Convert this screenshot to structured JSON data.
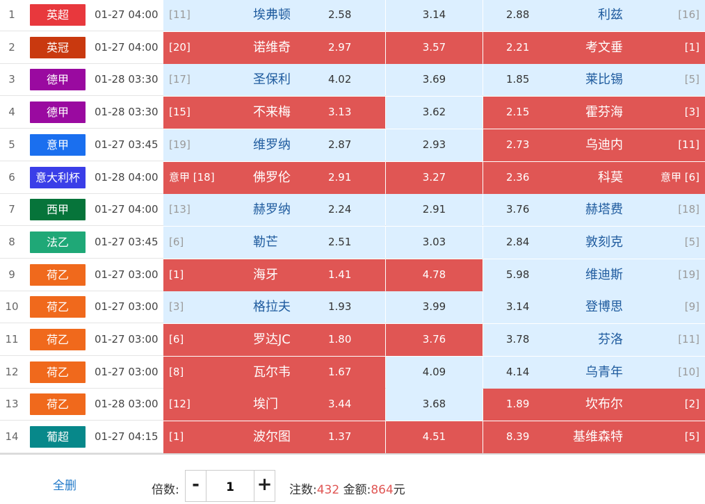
{
  "colors": {
    "selected_bg": "#e05654",
    "unselected_bg": "#dcefff",
    "team_text": "#1f5b9e"
  },
  "matches": [
    {
      "num": "1",
      "league": "英超",
      "league_color": "#e8383d",
      "time": "01-27 04:00",
      "home_rank": "[11]",
      "home": "埃弗顿",
      "home_odds": "2.58",
      "draw_odds": "3.14",
      "away_odds": "2.88",
      "away": "利兹",
      "away_rank": "[16]",
      "sel_home": false,
      "sel_draw": false,
      "sel_away": false
    },
    {
      "num": "2",
      "league": "英冠",
      "league_color": "#c9390f",
      "time": "01-27 04:00",
      "home_rank": "[20]",
      "home": "诺维奇",
      "home_odds": "2.97",
      "draw_odds": "3.57",
      "away_odds": "2.21",
      "away": "考文垂",
      "away_rank": "[1]",
      "sel_home": true,
      "sel_draw": true,
      "sel_away": true
    },
    {
      "num": "3",
      "league": "德甲",
      "league_color": "#9a0aa0",
      "time": "01-28 03:30",
      "home_rank": "[17]",
      "home": "圣保利",
      "home_odds": "4.02",
      "draw_odds": "3.69",
      "away_odds": "1.85",
      "away": "莱比锡",
      "away_rank": "[5]",
      "sel_home": false,
      "sel_draw": false,
      "sel_away": false
    },
    {
      "num": "4",
      "league": "德甲",
      "league_color": "#9a0aa0",
      "time": "01-28 03:30",
      "home_rank": "[15]",
      "home": "不来梅",
      "home_odds": "3.13",
      "draw_odds": "3.62",
      "away_odds": "2.15",
      "away": "霍芬海",
      "away_rank": "[3]",
      "sel_home": true,
      "sel_draw": false,
      "sel_away": true
    },
    {
      "num": "5",
      "league": "意甲",
      "league_color": "#1a6fef",
      "time": "01-27 03:45",
      "home_rank": "[19]",
      "home": "维罗纳",
      "home_odds": "2.87",
      "draw_odds": "2.93",
      "away_odds": "2.73",
      "away": "乌迪内",
      "away_rank": "[11]",
      "sel_home": false,
      "sel_draw": false,
      "sel_away": true
    },
    {
      "num": "6",
      "league": "意大利杯",
      "league_color": "#3a3ee8",
      "time": "01-28 04:00",
      "home_rank": "意甲 [18]",
      "home": "佛罗伦",
      "home_odds": "2.91",
      "draw_odds": "3.27",
      "away_odds": "2.36",
      "away": "科莫",
      "away_rank": "意甲 [6]",
      "sel_home": true,
      "sel_draw": true,
      "sel_away": true
    },
    {
      "num": "7",
      "league": "西甲",
      "league_color": "#06743a",
      "time": "01-27 04:00",
      "home_rank": "[13]",
      "home": "赫罗纳",
      "home_odds": "2.24",
      "draw_odds": "2.91",
      "away_odds": "3.76",
      "away": "赫塔费",
      "away_rank": "[18]",
      "sel_home": false,
      "sel_draw": false,
      "sel_away": false
    },
    {
      "num": "8",
      "league": "法乙",
      "league_color": "#1fa877",
      "time": "01-27 03:45",
      "home_rank": "[6]",
      "home": "勒芒",
      "home_odds": "2.51",
      "draw_odds": "3.03",
      "away_odds": "2.84",
      "away": "敦刻克",
      "away_rank": "[5]",
      "sel_home": false,
      "sel_draw": false,
      "sel_away": false
    },
    {
      "num": "9",
      "league": "荷乙",
      "league_color": "#f0691c",
      "time": "01-27 03:00",
      "home_rank": "[1]",
      "home": "海牙",
      "home_odds": "1.41",
      "draw_odds": "4.78",
      "away_odds": "5.98",
      "away": "维迪斯",
      "away_rank": "[19]",
      "sel_home": true,
      "sel_draw": true,
      "sel_away": false
    },
    {
      "num": "10",
      "league": "荷乙",
      "league_color": "#f0691c",
      "time": "01-27 03:00",
      "home_rank": "[3]",
      "home": "格拉夫",
      "home_odds": "1.93",
      "draw_odds": "3.99",
      "away_odds": "3.14",
      "away": "登博思",
      "away_rank": "[9]",
      "sel_home": false,
      "sel_draw": false,
      "sel_away": false
    },
    {
      "num": "11",
      "league": "荷乙",
      "league_color": "#f0691c",
      "time": "01-27 03:00",
      "home_rank": "[6]",
      "home": "罗达JC",
      "home_odds": "1.80",
      "draw_odds": "3.76",
      "away_odds": "3.78",
      "away": "芬洛",
      "away_rank": "[11]",
      "sel_home": true,
      "sel_draw": true,
      "sel_away": false
    },
    {
      "num": "12",
      "league": "荷乙",
      "league_color": "#f0691c",
      "time": "01-27 03:00",
      "home_rank": "[8]",
      "home": "瓦尔韦",
      "home_odds": "1.67",
      "draw_odds": "4.09",
      "away_odds": "4.14",
      "away": "乌青年",
      "away_rank": "[10]",
      "sel_home": true,
      "sel_draw": false,
      "sel_away": false
    },
    {
      "num": "13",
      "league": "荷乙",
      "league_color": "#f0691c",
      "time": "01-28 03:00",
      "home_rank": "[12]",
      "home": "埃门",
      "home_odds": "3.44",
      "draw_odds": "3.68",
      "away_odds": "1.89",
      "away": "坎布尔",
      "away_rank": "[2]",
      "sel_home": true,
      "sel_draw": false,
      "sel_away": true
    },
    {
      "num": "14",
      "league": "葡超",
      "league_color": "#07888a",
      "time": "01-27 04:15",
      "home_rank": "[1]",
      "home": "波尔图",
      "home_odds": "1.37",
      "draw_odds": "4.51",
      "away_odds": "8.39",
      "away": "基维森特",
      "away_rank": "[5]",
      "sel_home": true,
      "sel_draw": true,
      "sel_away": true
    }
  ],
  "footer": {
    "delete_all": "全删",
    "multiplier_label": "倍数:",
    "minus": "-",
    "multiplier_value": "1",
    "plus": "+",
    "bets_label": "注数:",
    "bets_value": "432",
    "amount_label": "金额:",
    "amount_value": "864",
    "currency": "元"
  }
}
